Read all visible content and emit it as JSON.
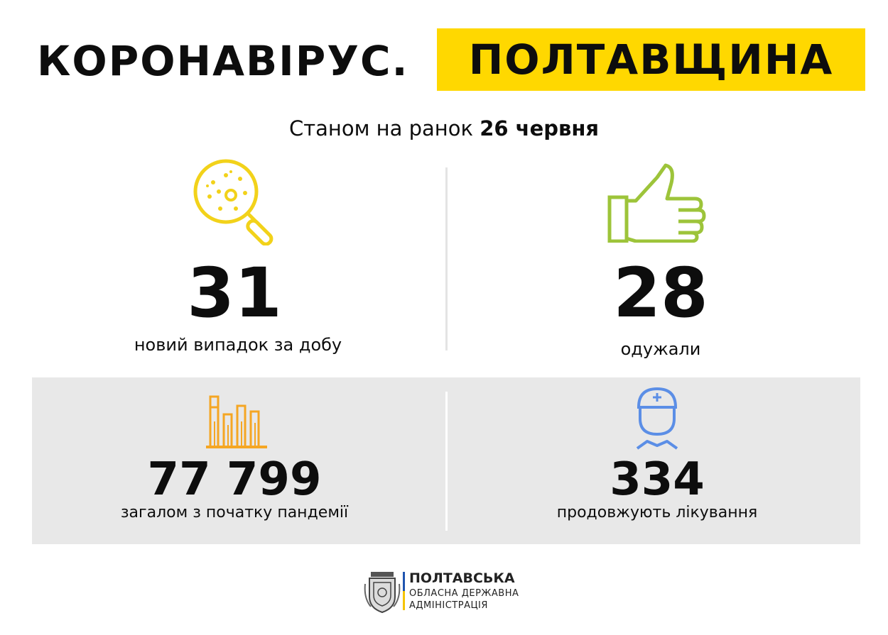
{
  "header": {
    "title_left": "КОРОНАВІРУС.",
    "title_right": "ПОЛТАВЩИНА",
    "date_prefix": "Станом на ранок",
    "date_value": "26 червня"
  },
  "colors": {
    "highlight": "#ffd800",
    "icon_yellow": "#f2d21a",
    "icon_green": "#9dc43a",
    "icon_orange": "#f5a623",
    "icon_blue": "#5b8ee6",
    "panel_gray": "#e8e8e8"
  },
  "stats": {
    "new_cases": {
      "value": "31",
      "label": "новий випадок за добу",
      "icon": "magnifier-virus-icon"
    },
    "recovered": {
      "value": "28",
      "label": "одужали",
      "icon": "thumbs-up-icon"
    },
    "total": {
      "value": "77 799",
      "label": "загалом з початку пандемії",
      "icon": "bar-chart-icon"
    },
    "in_treatment": {
      "value": "334",
      "label": "продовжують лікування",
      "icon": "doctor-icon"
    }
  },
  "footer": {
    "line1": "ПОЛТАВСЬКА",
    "line2": "ОБЛАСНА ДЕРЖАВНА",
    "line3": "АДМІНІСТРАЦІЯ",
    "logo_icon": "coat-of-arms-icon"
  }
}
